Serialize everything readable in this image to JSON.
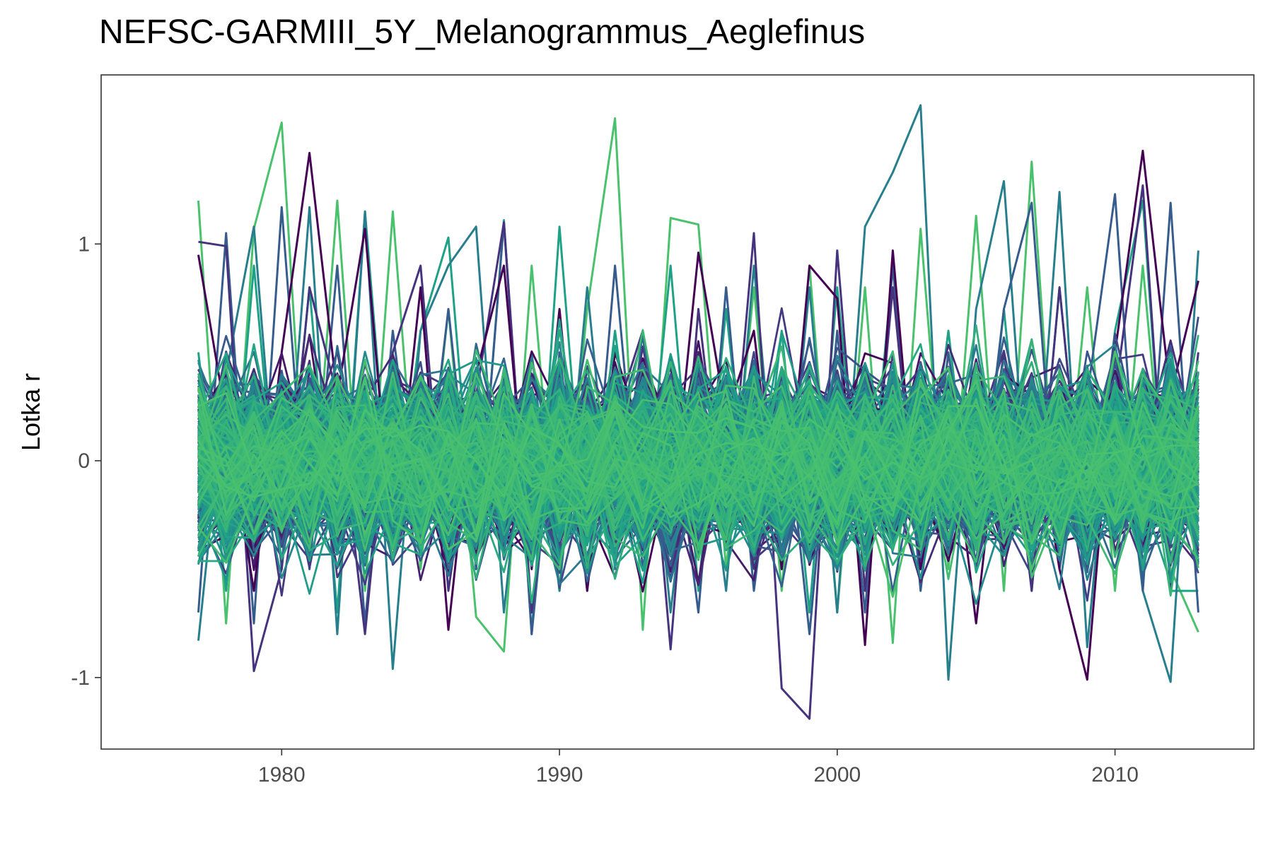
{
  "chart_data": {
    "type": "line",
    "title": "NEFSC-GARMIII_5Y_Melanogrammus_Aeglefinus",
    "xlabel": "",
    "ylabel": "Lotka r",
    "xlim": [
      1973.5,
      2015
    ],
    "ylim": [
      -1.33,
      1.78
    ],
    "x_ticks": [
      1980,
      1990,
      2000,
      2010
    ],
    "y_ticks": [
      -1,
      0,
      1
    ],
    "y_tick_labels": [
      "-1",
      "0",
      "1"
    ],
    "grid": false,
    "legend": "none",
    "palette": [
      "#440154",
      "#46337e",
      "#365c8d",
      "#277f8e",
      "#1fa187",
      "#4ac16d"
    ],
    "x": [
      1977,
      1978,
      1979,
      1980,
      1981,
      1982,
      1983,
      1984,
      1985,
      1986,
      1987,
      1988,
      1989,
      1990,
      1991,
      1992,
      1993,
      1994,
      1995,
      1996,
      1997,
      1998,
      1999,
      2000,
      2001,
      2002,
      2003,
      2004,
      2005,
      2006,
      2007,
      2008,
      2009,
      2010,
      2011,
      2012,
      2013
    ],
    "series_count": 400,
    "series_summary": {
      "typical_range": [
        -0.7,
        0.75
      ],
      "overall_min": -1.19,
      "overall_max": 1.64
    },
    "highlight_series": [
      {
        "color": "#440154",
        "values": [
          0.95,
          0.2,
          -0.6,
          0.5,
          1.42,
          0.3,
          1.07,
          -0.4,
          0.8,
          -0.78,
          0.4,
          0.9,
          -0.5,
          0.7,
          -0.6,
          0.5,
          0.1,
          -0.3,
          0.96,
          0.2,
          0.6,
          -0.5,
          0.9,
          0.75,
          -0.85,
          0.97,
          -0.5,
          0.3,
          -0.75,
          0.4,
          0.3,
          -0.5,
          -1.01,
          0.5,
          1.43,
          0.3,
          0.83
        ]
      },
      {
        "color": "#46337e",
        "values": [
          1.01,
          0.99,
          -0.97,
          -0.5,
          0.8,
          0.3,
          -0.8,
          0.5,
          0.9,
          -0.6,
          0.3,
          1.1,
          -0.7,
          0.4,
          -0.5,
          0.2,
          0.6,
          -0.87,
          0.7,
          -0.4,
          1.05,
          -1.05,
          -1.19,
          0.97,
          -0.6,
          0.8,
          -0.5,
          0.3,
          -0.4,
          0.5,
          -0.6,
          0.8,
          -0.5,
          0.3,
          1.27,
          -0.6,
          0.5
        ]
      },
      {
        "color": "#365c8d",
        "values": [
          -0.7,
          1.05,
          -0.75,
          1.17,
          -0.5,
          0.9,
          -0.75,
          0.6,
          -0.4,
          0.7,
          -0.5,
          1.1,
          -0.8,
          0.5,
          -0.6,
          0.9,
          -0.5,
          0.3,
          -0.7,
          0.8,
          -0.6,
          0.4,
          -0.8,
          0.6,
          -0.7,
          0.9,
          -0.6,
          0.5,
          -0.4,
          0.7,
          1.19,
          -0.5,
          0.3,
          1.23,
          -0.6,
          1.19,
          -0.7
        ]
      },
      {
        "color": "#277f8e",
        "values": [
          -0.83,
          0.4,
          1.08,
          -0.5,
          1.17,
          -0.8,
          1.15,
          -0.96,
          0.6,
          0.9,
          1.08,
          -0.7,
          0.5,
          -0.6,
          0.8,
          -0.5,
          0.6,
          -0.7,
          0.4,
          -0.6,
          0.9,
          -0.5,
          0.8,
          -0.7,
          1.08,
          1.33,
          1.64,
          -1.01,
          0.7,
          1.29,
          -0.5,
          1.24,
          -0.86,
          0.5,
          -0.6,
          -1.02,
          0.97
        ]
      },
      {
        "color": "#1fa187",
        "values": [
          0.5,
          -0.6,
          0.9,
          -0.5,
          0.8,
          -0.7,
          1.15,
          -0.4,
          0.6,
          1.03,
          -0.5,
          1.11,
          -0.8,
          1.08,
          -0.5,
          0.6,
          -0.4,
          0.9,
          -0.6,
          0.7,
          -0.5,
          0.6,
          -0.7,
          0.8,
          -0.5,
          0.9,
          -0.4,
          0.6,
          -0.5,
          0.7,
          -0.6,
          0.8,
          -0.5,
          0.6,
          1.2,
          -0.6,
          -0.6
        ]
      },
      {
        "color": "#4ac16d",
        "values": [
          1.2,
          -0.75,
          1.07,
          1.56,
          -0.5,
          1.2,
          -0.6,
          1.15,
          -0.5,
          0.7,
          -0.72,
          -0.88,
          0.9,
          -0.6,
          0.7,
          1.58,
          -0.78,
          1.12,
          1.09,
          -0.5,
          0.8,
          -0.6,
          0.9,
          -0.7,
          0.8,
          -0.84,
          1.07,
          -0.5,
          1.13,
          -0.6,
          1.38,
          -0.5,
          0.8,
          -0.6,
          0.9,
          -0.5,
          -0.79
        ]
      }
    ]
  }
}
